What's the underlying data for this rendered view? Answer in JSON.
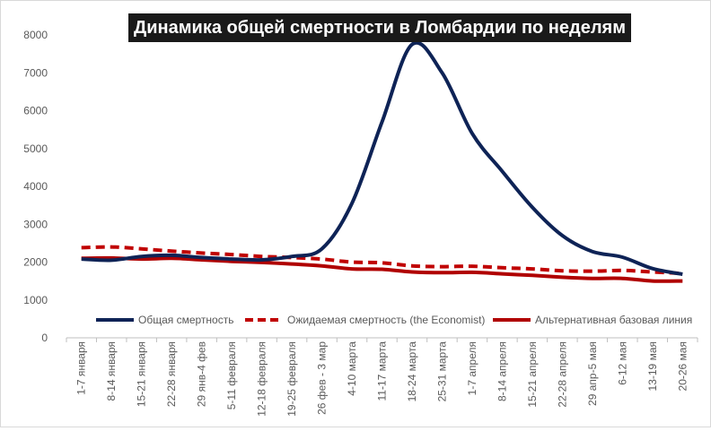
{
  "chart_data": {
    "type": "line",
    "title": "Динамика общей смертности в Ломбардии по неделям",
    "xlabel": "",
    "ylabel": "",
    "ylim": [
      0,
      8000
    ],
    "yticks": [
      0,
      1000,
      2000,
      3000,
      4000,
      5000,
      6000,
      7000,
      8000
    ],
    "grid": false,
    "legend_position": "bottom-inside",
    "categories": [
      "1-7 января",
      "8-14 января",
      "15-21 января",
      "22-28 января",
      "29 янв-4 фев",
      "5-11 февраля",
      "12-18 февраля",
      "19-25 февраля",
      "26 фев - 3 мар",
      "4-10 марта",
      "11-17 марта",
      "18-24 марта",
      "25-31 марта",
      "1-7 апреля",
      "8-14 апреля",
      "15-21 апреля",
      "22-28 апреля",
      "29 апр-5 мая",
      "6-12 мая",
      "13-19 мая",
      "20-26 мая"
    ],
    "series": [
      {
        "name": "Общая смертность",
        "color": "#0e2356",
        "dash": "solid",
        "values": [
          2080,
          2050,
          2150,
          2180,
          2120,
          2080,
          2060,
          2150,
          2350,
          3550,
          5700,
          7750,
          7000,
          5400,
          4400,
          3450,
          2700,
          2280,
          2130,
          1830,
          1680
        ]
      },
      {
        "name": "Ожидаемая смертность (the Economist)",
        "color": "#c00000",
        "dash": "dashed",
        "values": [
          2380,
          2400,
          2350,
          2290,
          2240,
          2200,
          2150,
          2120,
          2080,
          2000,
          1980,
          1900,
          1880,
          1890,
          1850,
          1820,
          1770,
          1760,
          1780,
          1740,
          1700
        ]
      },
      {
        "name": "Альтернативная базовая линия",
        "color": "#b00000",
        "dash": "solid",
        "values": [
          2100,
          2110,
          2080,
          2100,
          2060,
          2020,
          1990,
          1950,
          1900,
          1820,
          1810,
          1740,
          1720,
          1730,
          1690,
          1650,
          1600,
          1570,
          1570,
          1500,
          1500
        ]
      }
    ]
  }
}
